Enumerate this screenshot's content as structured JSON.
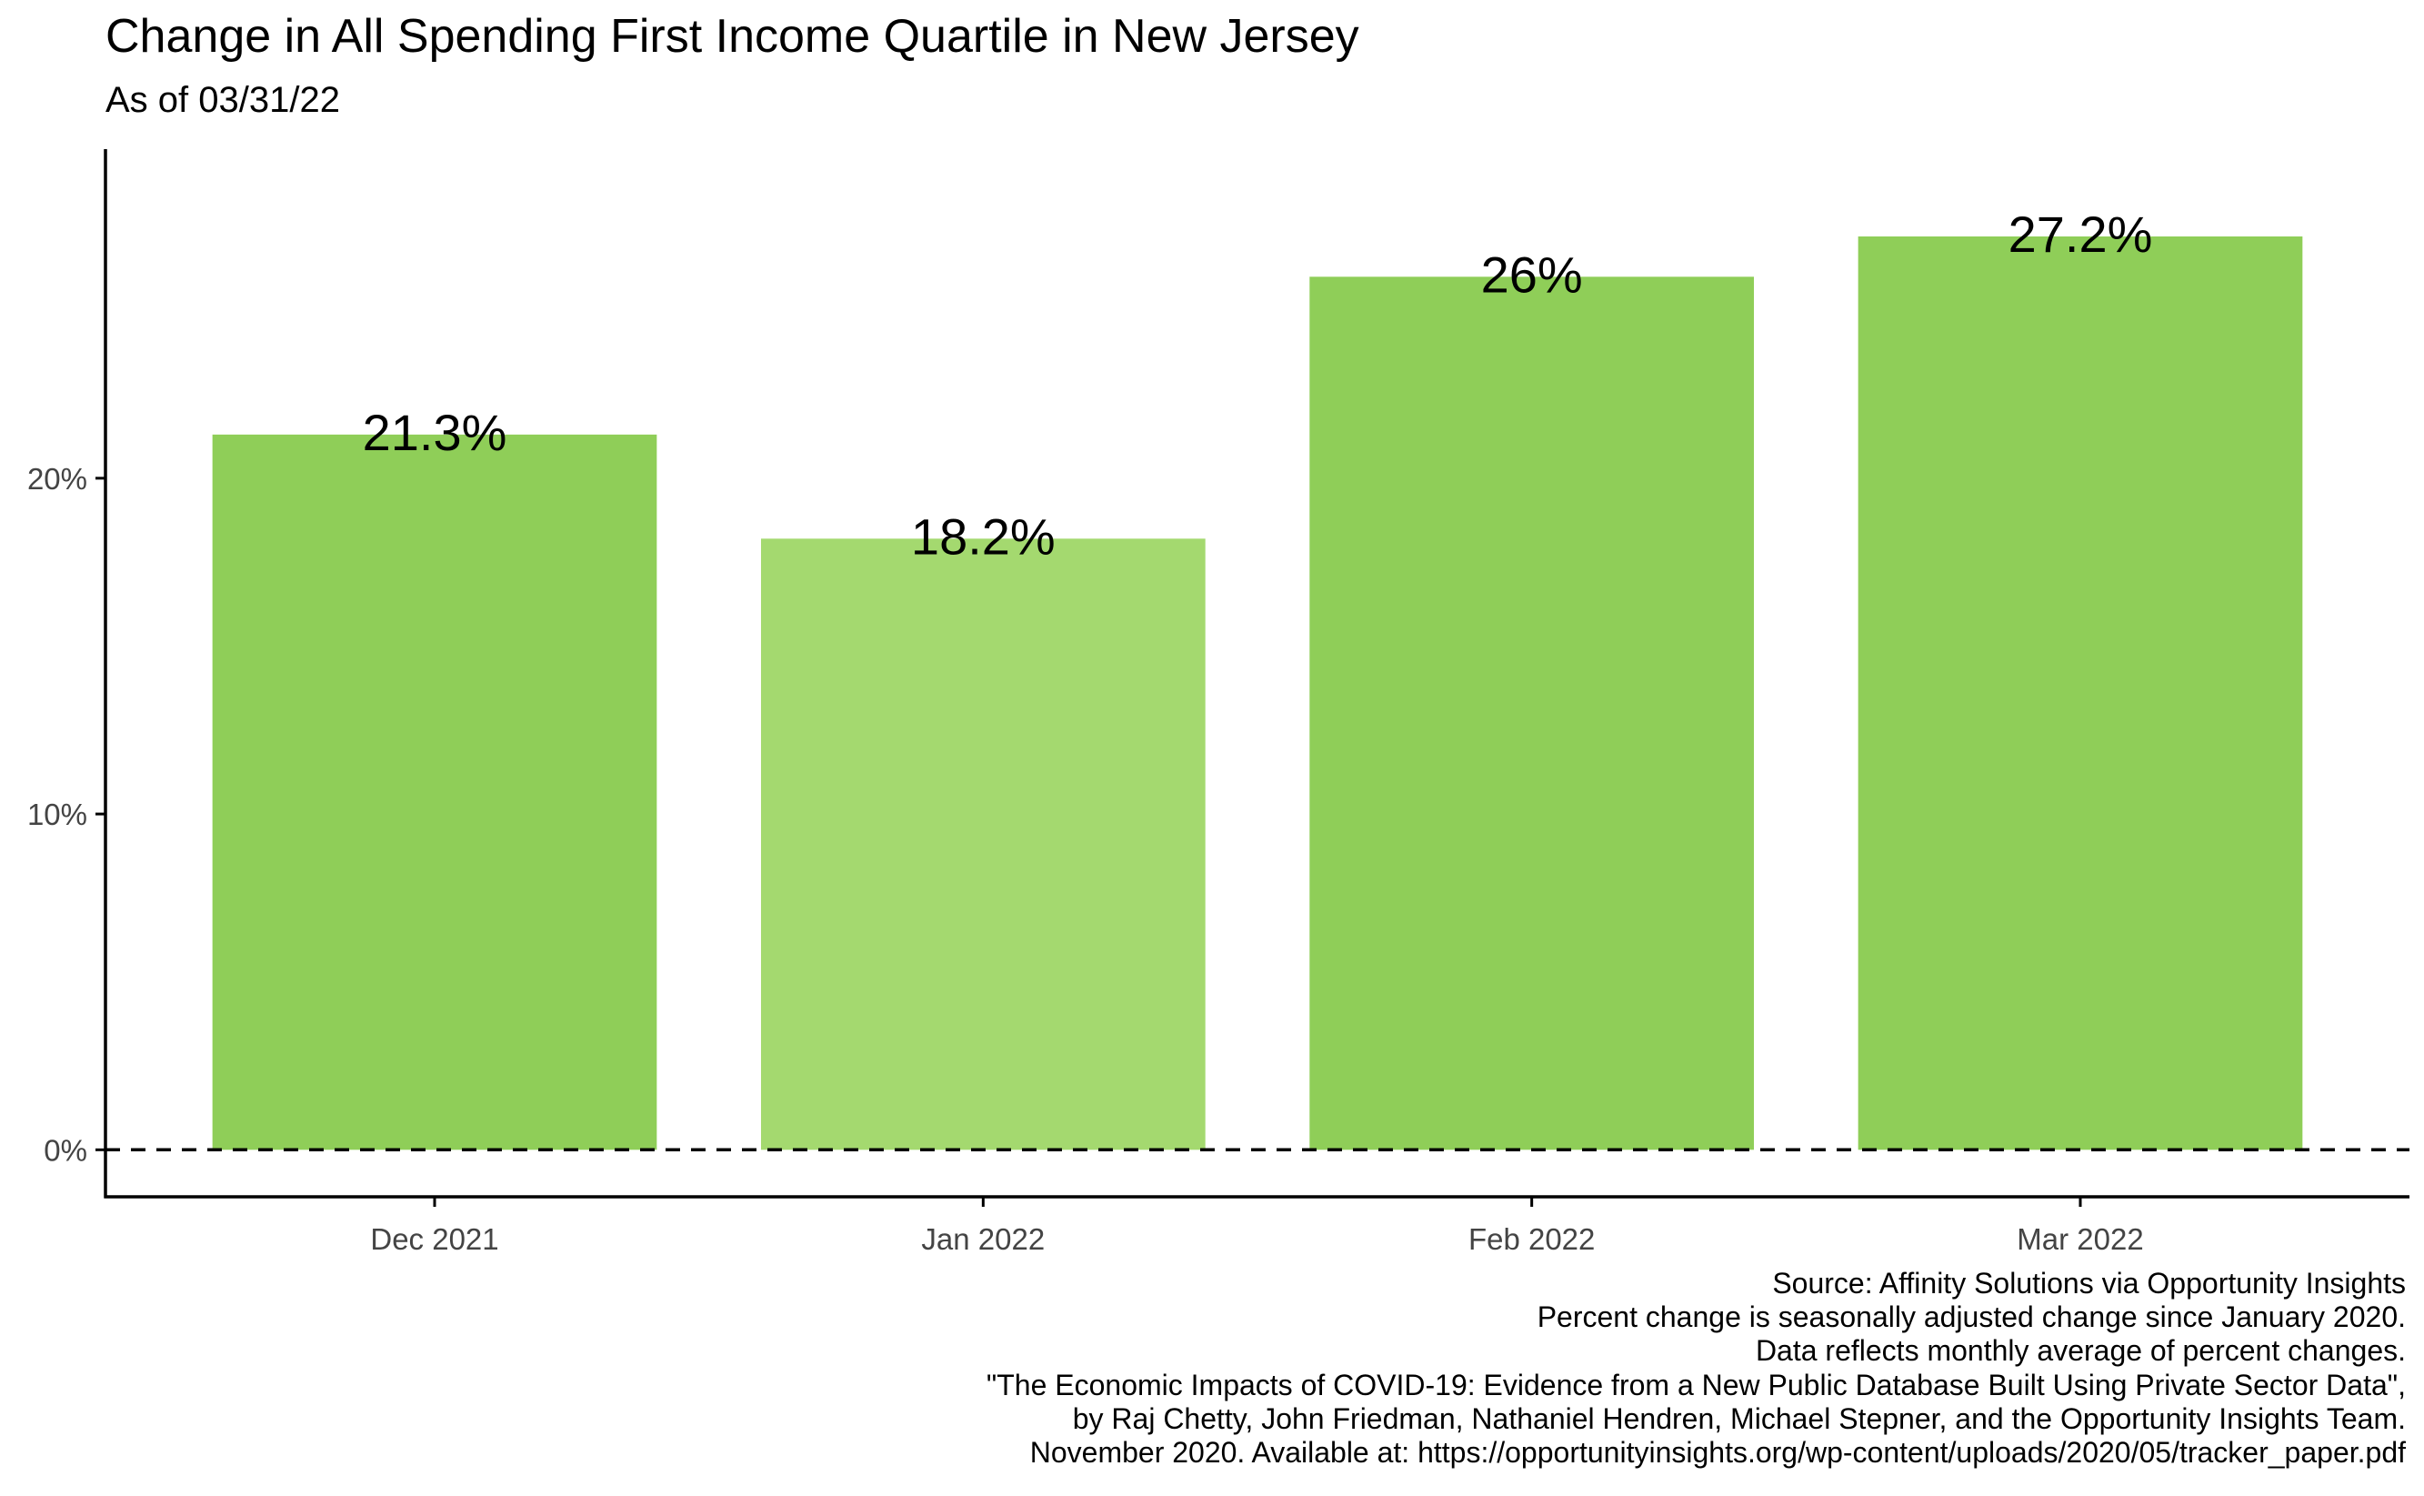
{
  "chart_data": {
    "type": "bar",
    "title": "Change in All Spending First Income Quartile in New Jersey",
    "subtitle": "As of 03/31/22",
    "categories": [
      "Dec 2021",
      "Jan 2022",
      "Feb 2022",
      "Mar 2022"
    ],
    "values": [
      21.3,
      18.2,
      26,
      27.2
    ],
    "data_labels": [
      "21.3%",
      "18.2%",
      "26%",
      "27.2%"
    ],
    "bar_colors": [
      "#8fce58",
      "#a4d96f",
      "#8fce58",
      "#8fce58"
    ],
    "xlabel": "",
    "ylabel": "",
    "yticks": [
      0,
      10,
      20
    ],
    "ytick_labels": [
      "0%",
      "10%",
      "20%"
    ],
    "ylim": [
      -1.4,
      29.8
    ],
    "reference_line": {
      "y": 0,
      "style": "dashed"
    },
    "grid": false,
    "legend": "none"
  },
  "caption": [
    "Source: Affinity Solutions via Opportunity Insights",
    "Percent change is seasonally adjusted change since January 2020.",
    "Data reflects monthly average of percent changes.",
    "\"The Economic Impacts of COVID-19: Evidence from a New Public Database Built Using Private Sector Data\",",
    "by Raj Chetty, John Friedman, Nathaniel Hendren, Michael Stepner, and the Opportunity Insights Team.",
    "November 2020. Available at: https://opportunityinsights.org/wp-content/uploads/2020/05/tracker_paper.pdf"
  ]
}
